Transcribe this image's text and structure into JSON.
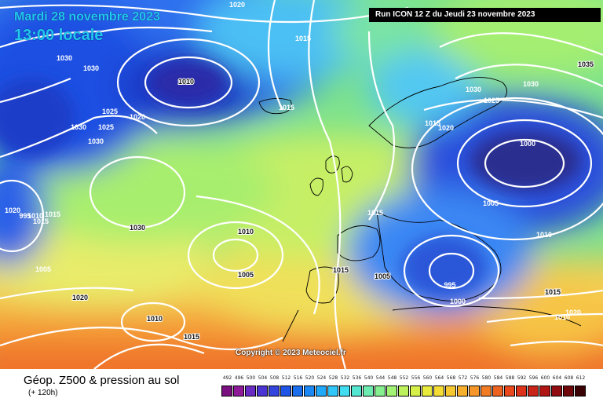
{
  "header": {
    "date_line": "Mardi 28 novembre 2023",
    "time_line": "13:00 locale",
    "run_info": "Run ICON 12 Z du Jeudi 23 novembre 2023"
  },
  "copyright": "Copyright © 2023 Meteociel.fr",
  "legend": {
    "title": "Géop. Z500 & pression au sol",
    "subtitle": "(+ 120h)",
    "values": [
      "492",
      "496",
      "500",
      "504",
      "508",
      "512",
      "516",
      "520",
      "524",
      "528",
      "532",
      "536",
      "540",
      "544",
      "548",
      "552",
      "556",
      "560",
      "564",
      "568",
      "572",
      "576",
      "580",
      "584",
      "588",
      "592",
      "596",
      "600",
      "604",
      "608",
      "612"
    ],
    "colors": [
      "#7a0f7f",
      "#8e1a9a",
      "#6a2bc4",
      "#4a35d4",
      "#3344dd",
      "#1f55e6",
      "#1a6eee",
      "#1a88f5",
      "#20a8fa",
      "#30c6fa",
      "#40dcf0",
      "#55e6d2",
      "#6cecb0",
      "#86f090",
      "#a2f273",
      "#bef25c",
      "#d6f048",
      "#e8ea3c",
      "#f4dc34",
      "#f8c830",
      "#f8b02c",
      "#f69628",
      "#f27c24",
      "#ee6220",
      "#e8481c",
      "#dc321a",
      "#c82418",
      "#b01614",
      "#900c10",
      "#6e060a",
      "#3a0204"
    ]
  },
  "map": {
    "isobar_labels": [
      {
        "text": "1020",
        "tone": "light"
      },
      {
        "text": "1015",
        "tone": "light"
      },
      {
        "text": "1010",
        "tone": "dark"
      },
      {
        "text": "1030",
        "tone": "light"
      },
      {
        "text": "1030",
        "tone": "light"
      },
      {
        "text": "1025",
        "tone": "light"
      },
      {
        "text": "1020",
        "tone": "light"
      },
      {
        "text": "1030",
        "tone": "light"
      },
      {
        "text": "1025",
        "tone": "light"
      },
      {
        "text": "1030",
        "tone": "light"
      },
      {
        "text": "1015",
        "tone": "light"
      },
      {
        "text": "1030",
        "tone": "dark"
      },
      {
        "text": "1010",
        "tone": "dark"
      },
      {
        "text": "1005",
        "tone": "dark"
      },
      {
        "text": "1020",
        "tone": "dark"
      },
      {
        "text": "1010",
        "tone": "dark"
      },
      {
        "text": "1015",
        "tone": "dark"
      },
      {
        "text": "1015",
        "tone": "dark"
      },
      {
        "text": "1005",
        "tone": "dark"
      },
      {
        "text": "1015",
        "tone": "light"
      },
      {
        "text": "1035",
        "tone": "dark"
      },
      {
        "text": "1030",
        "tone": "light"
      },
      {
        "text": "1030",
        "tone": "light"
      },
      {
        "text": "1025",
        "tone": "light"
      },
      {
        "text": "1020",
        "tone": "light"
      },
      {
        "text": "1000",
        "tone": "light"
      },
      {
        "text": "1005",
        "tone": "light"
      },
      {
        "text": "1015",
        "tone": "light"
      },
      {
        "text": "1010",
        "tone": "light"
      },
      {
        "text": "995",
        "tone": "light"
      },
      {
        "text": "1000",
        "tone": "light"
      },
      {
        "text": "1015",
        "tone": "dark"
      },
      {
        "text": "1010",
        "tone": "light"
      },
      {
        "text": "1020",
        "tone": "light"
      },
      {
        "text": "1020",
        "tone": "light"
      },
      {
        "text": "995",
        "tone": "light"
      },
      {
        "text": "1010",
        "tone": "light"
      },
      {
        "text": "1015",
        "tone": "light"
      },
      {
        "text": "1005",
        "tone": "light"
      },
      {
        "text": "1015",
        "tone": "light"
      }
    ]
  }
}
